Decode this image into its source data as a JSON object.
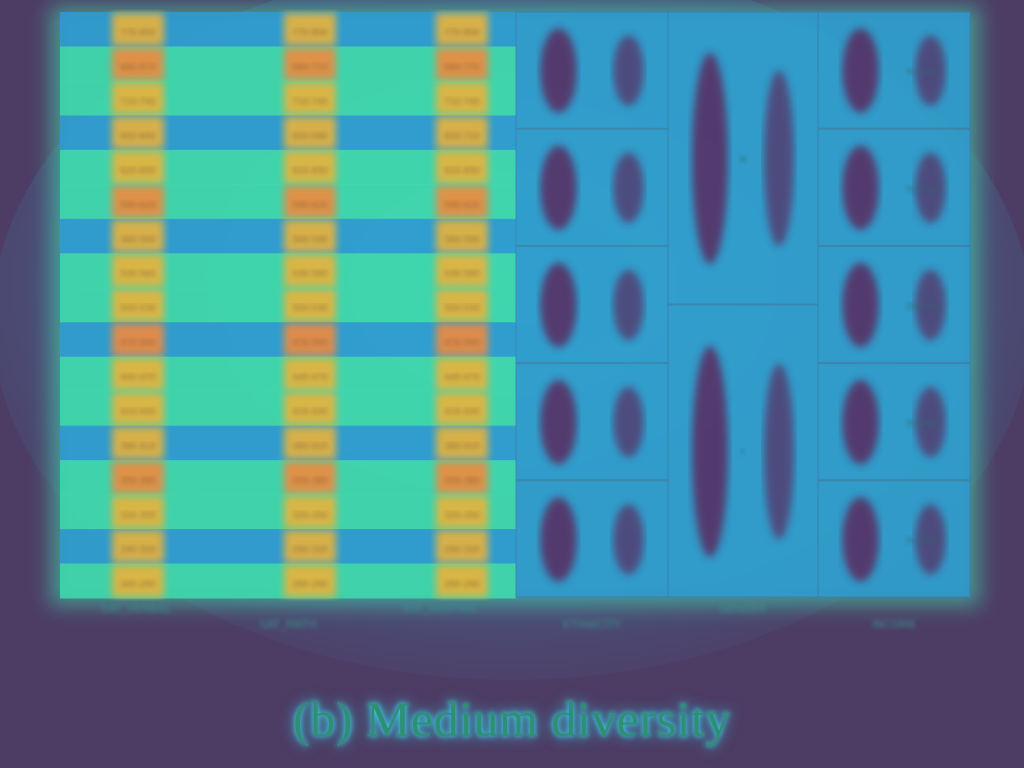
{
  "caption": "(b)  Medium diversity",
  "chart_data": {
    "type": "heatmap",
    "title": "",
    "columns": [
      "SAT_VERBAL",
      "SAT_MATH",
      "SAT_WRITING",
      "ETHNICITY",
      "GENDER",
      "INCOME"
    ],
    "column_groups": [
      {
        "name": "SAT_VERBAL",
        "cells": 17
      },
      {
        "name": "SAT_MATH",
        "cells": 17
      },
      {
        "name": "SAT_WRITING",
        "cells": 17
      },
      {
        "name": "ETHNICITY",
        "cells": 5
      },
      {
        "name": "GENDER",
        "cells": 2
      },
      {
        "name": "INCOME",
        "cells": 5
      }
    ],
    "row_values": [
      [
        "770-800",
        "770-800",
        "770-800"
      ],
      [
        "680-670",
        "680-710",
        "680-770"
      ],
      [
        "710-740",
        "710-740",
        "710-740"
      ],
      [
        "650-680",
        "650-680",
        "650-710"
      ],
      [
        "620-650",
        "620-650",
        "620-650"
      ],
      [
        "590-620",
        "590-620",
        "590-620"
      ],
      [
        "560-590",
        "560-590",
        "560-590"
      ],
      [
        "530-560",
        "530-560",
        "530-560"
      ],
      [
        "500-530",
        "500-530",
        "500-530"
      ],
      [
        "470-500",
        "470-500",
        "470-500"
      ],
      [
        "440-470",
        "440-470",
        "440-470"
      ],
      [
        "410-440",
        "410-440",
        "410-440"
      ],
      [
        "380-410",
        "380-410",
        "380-410"
      ],
      [
        "350-380",
        "350-380",
        "350-380"
      ],
      [
        "320-350",
        "320-350",
        "320-350"
      ],
      [
        "290-320",
        "290-320",
        "290-320"
      ],
      [
        "260-290",
        "260-290",
        "260-290"
      ]
    ],
    "category_labels": {
      "ETHNICITY": [
        "",
        "",
        "",
        "",
        ""
      ],
      "GENDER": [
        "M",
        "F"
      ],
      "INCOME": [
        "Bucket",
        "Bucket",
        "Bucket",
        "Bucket",
        "Bucket"
      ]
    },
    "colors": {
      "background": "#4d3c64",
      "cold": "#2d9bd6",
      "mid": "#3fdcae",
      "warm": "#e9b23a",
      "hot": "#f08a3c",
      "dark": "#5a2a5e"
    },
    "legend": "none"
  }
}
